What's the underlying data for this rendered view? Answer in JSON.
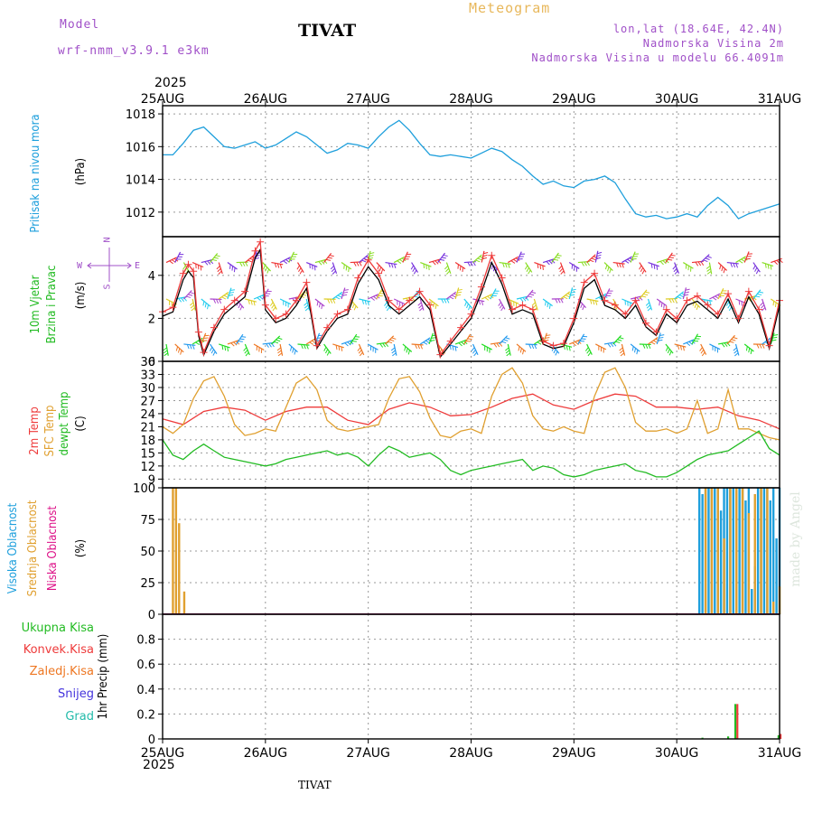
{
  "header": {
    "model_label": "Model",
    "model_name": "wrf-nmm_v3.9.1 e3km",
    "station": "TIVAT",
    "product": "Meteogram",
    "coords": "lon,lat (18.64E, 42.4N)",
    "elevation": "Nadmorska Visina 2m",
    "model_elevation": "Nadmorska Visina u modelu 66.4091m",
    "year": "2025"
  },
  "footer": {
    "station": "TIVAT",
    "year": "2025",
    "credit": "made by Angel"
  },
  "colors": {
    "pressure": "#1e9fdc",
    "temp2m": "#ee3b3b",
    "sfc": "#e0a030",
    "dew": "#22bb22",
    "high": "#1e9fdc",
    "mid": "#e0a030",
    "low": "#dd1188",
    "total": "#22bb22",
    "conv": "#ee3b3b",
    "frozen": "#ee7722",
    "snow": "#4433dd",
    "grad": "#22bbaa",
    "wind": "#000000"
  },
  "chart_data": [
    {
      "type": "line",
      "id": "pressure",
      "ylabel_main": "Pritisak na nivou mora",
      "ylabel_unit": "(hPa)",
      "ylim": [
        1010.5,
        1018.5
      ],
      "yticks": [
        1012,
        1014,
        1016,
        1018
      ],
      "x_days": [
        "25AUG",
        "26AUG",
        "27AUG",
        "28AUG",
        "29AUG",
        "30AUG",
        "31AUG"
      ],
      "series": [
        {
          "name": "Pritisak",
          "x": [
            0,
            0.1,
            0.2,
            0.3,
            0.4,
            0.5,
            0.6,
            0.7,
            0.8,
            0.9,
            1,
            1.1,
            1.2,
            1.3,
            1.4,
            1.5,
            1.6,
            1.7,
            1.8,
            1.9,
            2,
            2.1,
            2.2,
            2.3,
            2.4,
            2.5,
            2.6,
            2.7,
            2.8,
            2.9,
            3,
            3.1,
            3.2,
            3.3,
            3.4,
            3.5,
            3.6,
            3.7,
            3.8,
            3.9,
            4,
            4.1,
            4.2,
            4.3,
            4.4,
            4.5,
            4.6,
            4.7,
            4.8,
            4.9,
            5,
            5.1,
            5.2,
            5.3,
            5.4,
            5.5,
            5.6,
            5.7,
            5.8,
            5.9,
            6
          ],
          "values": [
            1015.5,
            1015.5,
            1016.2,
            1017.0,
            1017.2,
            1016.6,
            1016.0,
            1015.9,
            1016.1,
            1016.3,
            1015.9,
            1016.1,
            1016.5,
            1016.9,
            1016.6,
            1016.1,
            1015.6,
            1015.8,
            1016.2,
            1016.1,
            1015.9,
            1016.6,
            1017.2,
            1017.6,
            1017.0,
            1016.2,
            1015.5,
            1015.4,
            1015.5,
            1015.4,
            1015.3,
            1015.6,
            1015.9,
            1015.7,
            1015.2,
            1014.8,
            1014.2,
            1013.7,
            1013.9,
            1013.6,
            1013.5,
            1013.9,
            1014.0,
            1014.2,
            1013.8,
            1012.8,
            1011.9,
            1011.7,
            1011.8,
            1011.6,
            1011.7,
            1011.9,
            1011.7,
            1012.4,
            1012.9,
            1012.4,
            1011.6,
            1011.9,
            1012.1,
            1012.3,
            1012.5
          ]
        }
      ]
    },
    {
      "type": "line",
      "id": "wind",
      "ylabel_main": "10m Vjetar",
      "ylabel_sub": "Brzina i Pravac",
      "ylabel_unit": "(m/s)",
      "compass": {
        "n": "N",
        "e": "E",
        "w": "W",
        "s": "S"
      },
      "ylim": [
        0,
        5.8
      ],
      "yticks": [
        0,
        2,
        4
      ],
      "series": [
        {
          "name": "Brzina",
          "x": [
            0,
            0.1,
            0.2,
            0.25,
            0.3,
            0.35,
            0.4,
            0.5,
            0.6,
            0.7,
            0.8,
            0.9,
            0.95,
            1,
            1.1,
            1.2,
            1.3,
            1.4,
            1.5,
            1.6,
            1.7,
            1.8,
            1.9,
            2,
            2.1,
            2.2,
            2.3,
            2.4,
            2.5,
            2.6,
            2.7,
            2.8,
            2.9,
            3,
            3.1,
            3.2,
            3.3,
            3.4,
            3.5,
            3.6,
            3.7,
            3.8,
            3.9,
            4,
            4.1,
            4.2,
            4.3,
            4.4,
            4.5,
            4.6,
            4.7,
            4.8,
            4.9,
            5,
            5.1,
            5.2,
            5.3,
            5.4,
            5.5,
            5.6,
            5.7,
            5.8,
            5.9,
            6
          ],
          "values": [
            2.1,
            2.3,
            3.8,
            4.2,
            3.9,
            1.2,
            0.3,
            1.4,
            2.2,
            2.6,
            3.0,
            4.8,
            5.2,
            2.4,
            1.8,
            2.0,
            2.6,
            3.4,
            0.6,
            1.4,
            2.0,
            2.2,
            3.6,
            4.4,
            3.8,
            2.6,
            2.2,
            2.6,
            3.0,
            2.4,
            0.2,
            0.8,
            1.4,
            2.0,
            3.2,
            4.6,
            3.6,
            2.2,
            2.4,
            2.2,
            0.8,
            0.6,
            0.7,
            1.8,
            3.4,
            3.8,
            2.6,
            2.4,
            2.0,
            2.6,
            1.6,
            1.2,
            2.2,
            1.8,
            2.6,
            2.8,
            2.4,
            2.0,
            2.9,
            1.8,
            3.0,
            2.2,
            0.6,
            2.6
          ]
        }
      ],
      "wind_rows": [
        0.8,
        2.9,
        4.6
      ]
    },
    {
      "type": "line",
      "id": "temperature",
      "labels": [
        "2m Temp",
        "SFC Temp",
        "dewpt Temp"
      ],
      "ylabel_unit": "(C)",
      "ylim": [
        7,
        36
      ],
      "yticks": [
        9,
        12,
        15,
        18,
        21,
        24,
        27,
        30,
        33,
        36
      ],
      "series": [
        {
          "name": "2m Temp",
          "x": [
            0,
            0.2,
            0.4,
            0.6,
            0.8,
            1,
            1.2,
            1.4,
            1.6,
            1.8,
            2,
            2.2,
            2.4,
            2.6,
            2.8,
            3,
            3.2,
            3.4,
            3.6,
            3.8,
            4,
            4.2,
            4.4,
            4.6,
            4.8,
            5,
            5.2,
            5.4,
            5.6,
            5.8,
            6
          ],
          "values": [
            22.8,
            21.5,
            24.5,
            25.5,
            24.8,
            22.5,
            24.5,
            25.5,
            25.5,
            22.5,
            21.5,
            25.0,
            26.5,
            25.5,
            23.5,
            23.8,
            25.5,
            27.5,
            28.5,
            26.0,
            25.0,
            27.0,
            28.5,
            28.0,
            25.5,
            25.5,
            25.0,
            25.5,
            23.5,
            22.5,
            20.5
          ]
        },
        {
          "name": "SFC Temp",
          "x": [
            0,
            0.1,
            0.2,
            0.3,
            0.4,
            0.5,
            0.6,
            0.7,
            0.8,
            0.9,
            1,
            1.1,
            1.2,
            1.3,
            1.4,
            1.5,
            1.6,
            1.7,
            1.8,
            1.9,
            2,
            2.1,
            2.2,
            2.3,
            2.4,
            2.5,
            2.6,
            2.7,
            2.8,
            2.9,
            3,
            3.1,
            3.2,
            3.3,
            3.4,
            3.5,
            3.6,
            3.7,
            3.8,
            3.9,
            4,
            4.1,
            4.2,
            4.3,
            4.4,
            4.5,
            4.6,
            4.7,
            4.8,
            4.9,
            5,
            5.1,
            5.2,
            5.3,
            5.4,
            5.5,
            5.6,
            5.7,
            5.8,
            5.9,
            6
          ],
          "values": [
            21.0,
            19.5,
            21.5,
            27.5,
            31.5,
            32.5,
            28.0,
            21.5,
            19.0,
            19.5,
            20.5,
            20.0,
            25.5,
            31.0,
            32.5,
            29.5,
            22.5,
            20.5,
            20.0,
            20.5,
            21.0,
            21.5,
            27.5,
            32.0,
            32.5,
            29.0,
            23.0,
            19.0,
            18.5,
            20.0,
            20.5,
            19.5,
            28.0,
            33.0,
            34.5,
            31.0,
            23.5,
            20.5,
            20.0,
            21.0,
            20.0,
            19.5,
            28.0,
            33.5,
            34.5,
            30.0,
            22.0,
            20.0,
            20.0,
            20.5,
            19.5,
            20.5,
            27.0,
            19.5,
            20.5,
            29.5,
            20.5,
            20.5,
            19.5,
            18.5,
            18.0
          ]
        },
        {
          "name": "dewpt Temp",
          "x": [
            0,
            0.1,
            0.2,
            0.3,
            0.4,
            0.5,
            0.6,
            0.7,
            0.8,
            0.9,
            1,
            1.1,
            1.2,
            1.3,
            1.4,
            1.5,
            1.6,
            1.7,
            1.8,
            1.9,
            2,
            2.1,
            2.2,
            2.3,
            2.4,
            2.5,
            2.6,
            2.7,
            2.8,
            2.9,
            3,
            3.1,
            3.2,
            3.3,
            3.4,
            3.5,
            3.6,
            3.7,
            3.8,
            3.9,
            4,
            4.1,
            4.2,
            4.3,
            4.4,
            4.5,
            4.6,
            4.7,
            4.8,
            4.9,
            5,
            5.1,
            5.2,
            5.3,
            5.4,
            5.5,
            5.6,
            5.7,
            5.8,
            5.9,
            6
          ],
          "values": [
            18.0,
            14.5,
            13.5,
            15.5,
            17.0,
            15.5,
            14.0,
            13.5,
            13.0,
            12.5,
            12.0,
            12.5,
            13.5,
            14.0,
            14.5,
            15.0,
            15.5,
            14.5,
            15.0,
            14.0,
            12.0,
            14.5,
            16.5,
            15.5,
            14.0,
            14.5,
            15.0,
            13.5,
            11.0,
            10.0,
            11.0,
            11.5,
            12.0,
            12.5,
            13.0,
            13.5,
            11.0,
            12.0,
            11.5,
            10.0,
            9.5,
            10.0,
            11.0,
            11.5,
            12.0,
            12.5,
            11.0,
            10.5,
            9.5,
            9.5,
            10.5,
            12.0,
            13.5,
            14.5,
            15.0,
            15.5,
            17.0,
            18.5,
            20.0,
            16.0,
            14.5
          ]
        }
      ]
    },
    {
      "type": "bar",
      "id": "clouds",
      "labels": [
        "Visoka Oblacnost",
        "Srednja Oblacnost",
        "Niska Oblacnost"
      ],
      "ylabel_unit": "(%)",
      "ylim": [
        0,
        100
      ],
      "yticks": [
        0,
        25,
        50,
        75,
        100
      ],
      "series": [
        {
          "name": "Visoka",
          "x": [
            5.22,
            5.25,
            5.28,
            5.31,
            5.34,
            5.37,
            5.4,
            5.43,
            5.46,
            5.49,
            5.52,
            5.55,
            5.58,
            5.61,
            5.64,
            5.67,
            5.7,
            5.73,
            5.76,
            5.79,
            5.82,
            5.85,
            5.88,
            5.91,
            5.94,
            5.97,
            6.0
          ],
          "values": [
            100,
            95,
            100,
            100,
            100,
            100,
            100,
            82,
            100,
            100,
            100,
            100,
            98,
            100,
            100,
            90,
            100,
            20,
            38,
            100,
            100,
            100,
            100,
            90,
            100,
            60,
            100
          ]
        },
        {
          "name": "Srednja",
          "x": [
            0.09,
            0.12,
            0.15,
            0.2,
            5.27,
            5.33,
            5.39,
            5.45,
            5.51,
            5.57,
            5.63,
            5.69,
            5.75,
            5.81,
            5.87,
            5.93,
            5.99
          ],
          "values": [
            100,
            100,
            72,
            18,
            100,
            100,
            100,
            60,
            100,
            100,
            100,
            80,
            95,
            100,
            100,
            10,
            22
          ]
        },
        {
          "name": "Niska",
          "x": [],
          "values": []
        }
      ]
    },
    {
      "type": "bar",
      "id": "precip",
      "labels": [
        "Ukupna Kisa",
        "Konvek.Kisa",
        "Zaledj.Kisa",
        "Snijeg",
        "Grad"
      ],
      "ylabel_unit": "1hr Precip (mm)",
      "ylim": [
        0,
        1.0
      ],
      "yticks": [
        0,
        0.2,
        0.4,
        0.6,
        0.8
      ],
      "series": [
        {
          "name": "Ukupna Kisa",
          "x": [
            5.25,
            5.5,
            5.57,
            5.99
          ],
          "values": [
            0.01,
            0.02,
            0.28,
            0.03
          ]
        },
        {
          "name": "Konvek.Kisa",
          "x": [
            5.57,
            5.99
          ],
          "values": [
            0.28,
            0.04
          ]
        },
        {
          "name": "Zaledj.Kisa",
          "x": [],
          "values": []
        },
        {
          "name": "Snijeg",
          "x": [],
          "values": []
        },
        {
          "name": "Grad",
          "x": [],
          "values": []
        }
      ]
    }
  ]
}
